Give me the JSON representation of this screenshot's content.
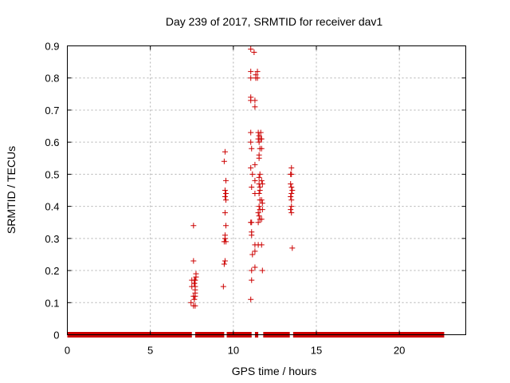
{
  "chart_data": {
    "type": "scatter",
    "title": "Day 239 of 2017, SRMTID for receiver dav1",
    "xlabel": "GPS time / hours",
    "ylabel": "SRMTID / TECUs",
    "xlim": [
      0,
      24
    ],
    "ylim": [
      0,
      0.9
    ],
    "x_ticks": [
      0,
      5,
      10,
      15,
      20
    ],
    "y_ticks": [
      0,
      0.1,
      0.2,
      0.3,
      0.4,
      0.5,
      0.6,
      0.7,
      0.8,
      0.9
    ],
    "x_tick_labels": [
      "0",
      "5",
      "10",
      "15",
      "20"
    ],
    "y_tick_labels": [
      "0",
      "0.1",
      "0.2",
      "0.3",
      "0.4",
      "0.5",
      "0.6",
      "0.7",
      "0.8",
      "0.9"
    ],
    "grid": true,
    "marker": "+",
    "color": "#cc0000",
    "zero_value_segments": [
      [
        0,
        7.5
      ],
      [
        7.7,
        9.45
      ],
      [
        9.6,
        11.1
      ],
      [
        11.3,
        11.5
      ],
      [
        11.8,
        13.4
      ],
      [
        13.6,
        22.7
      ]
    ],
    "points": [
      [
        7.5,
        0.17
      ],
      [
        7.5,
        0.15
      ],
      [
        7.45,
        0.1
      ],
      [
        7.6,
        0.34
      ],
      [
        7.6,
        0.23
      ],
      [
        7.65,
        0.17
      ],
      [
        7.65,
        0.16
      ],
      [
        7.65,
        0.16
      ],
      [
        7.7,
        0.17
      ],
      [
        7.7,
        0.15
      ],
      [
        7.7,
        0.13
      ],
      [
        7.7,
        0.12
      ],
      [
        7.65,
        0.11
      ],
      [
        7.6,
        0.09
      ],
      [
        7.7,
        0.09
      ],
      [
        7.75,
        0.19
      ],
      [
        7.75,
        0.18
      ],
      [
        7.7,
        0.14
      ],
      [
        7.6,
        0.12
      ],
      [
        9.4,
        0.15
      ],
      [
        9.5,
        0.57
      ],
      [
        9.45,
        0.54
      ],
      [
        9.55,
        0.48
      ],
      [
        9.5,
        0.45
      ],
      [
        9.55,
        0.44
      ],
      [
        9.5,
        0.43
      ],
      [
        9.55,
        0.42
      ],
      [
        9.5,
        0.38
      ],
      [
        9.55,
        0.34
      ],
      [
        9.5,
        0.31
      ],
      [
        9.5,
        0.3
      ],
      [
        9.55,
        0.29
      ],
      [
        9.45,
        0.29
      ],
      [
        9.5,
        0.23
      ],
      [
        9.45,
        0.22
      ],
      [
        11.05,
        0.89
      ],
      [
        11.05,
        0.82
      ],
      [
        11.05,
        0.8
      ],
      [
        11.05,
        0.74
      ],
      [
        11.05,
        0.73
      ],
      [
        11.05,
        0.63
      ],
      [
        11.05,
        0.6
      ],
      [
        11.1,
        0.58
      ],
      [
        11.05,
        0.52
      ],
      [
        11.15,
        0.5
      ],
      [
        11.1,
        0.46
      ],
      [
        11.1,
        0.35
      ],
      [
        11.05,
        0.35
      ],
      [
        11.1,
        0.32
      ],
      [
        11.1,
        0.31
      ],
      [
        11.15,
        0.25
      ],
      [
        11.1,
        0.2
      ],
      [
        11.1,
        0.17
      ],
      [
        11.05,
        0.11
      ],
      [
        11.25,
        0.88
      ],
      [
        11.35,
        0.81
      ],
      [
        11.35,
        0.8
      ],
      [
        11.3,
        0.71
      ],
      [
        11.3,
        0.73
      ],
      [
        11.3,
        0.53
      ],
      [
        11.3,
        0.48
      ],
      [
        11.3,
        0.44
      ],
      [
        11.3,
        0.28
      ],
      [
        11.3,
        0.26
      ],
      [
        11.3,
        0.21
      ],
      [
        11.45,
        0.82
      ],
      [
        11.45,
        0.8
      ],
      [
        11.5,
        0.63
      ],
      [
        11.55,
        0.62
      ],
      [
        11.5,
        0.61
      ],
      [
        11.55,
        0.6
      ],
      [
        11.6,
        0.58
      ],
      [
        11.55,
        0.56
      ],
      [
        11.55,
        0.55
      ],
      [
        11.6,
        0.5
      ],
      [
        11.55,
        0.49
      ],
      [
        11.55,
        0.47
      ],
      [
        11.6,
        0.46
      ],
      [
        11.6,
        0.45
      ],
      [
        11.55,
        0.44
      ],
      [
        11.6,
        0.42
      ],
      [
        11.55,
        0.4
      ],
      [
        11.6,
        0.39
      ],
      [
        11.5,
        0.38
      ],
      [
        11.55,
        0.37
      ],
      [
        11.6,
        0.36
      ],
      [
        11.5,
        0.35
      ],
      [
        11.5,
        0.28
      ],
      [
        11.65,
        0.63
      ],
      [
        11.65,
        0.61
      ],
      [
        11.7,
        0.61
      ],
      [
        11.7,
        0.58
      ],
      [
        11.7,
        0.48
      ],
      [
        11.75,
        0.47
      ],
      [
        11.7,
        0.42
      ],
      [
        11.75,
        0.41
      ],
      [
        11.75,
        0.39
      ],
      [
        11.7,
        0.36
      ],
      [
        11.7,
        0.28
      ],
      [
        11.75,
        0.2
      ],
      [
        13.5,
        0.52
      ],
      [
        13.45,
        0.5
      ],
      [
        13.5,
        0.5
      ],
      [
        13.45,
        0.47
      ],
      [
        13.5,
        0.46
      ],
      [
        13.55,
        0.45
      ],
      [
        13.5,
        0.44
      ],
      [
        13.45,
        0.43
      ],
      [
        13.5,
        0.42
      ],
      [
        13.5,
        0.4
      ],
      [
        13.45,
        0.39
      ],
      [
        13.5,
        0.38
      ],
      [
        13.55,
        0.27
      ]
    ]
  }
}
